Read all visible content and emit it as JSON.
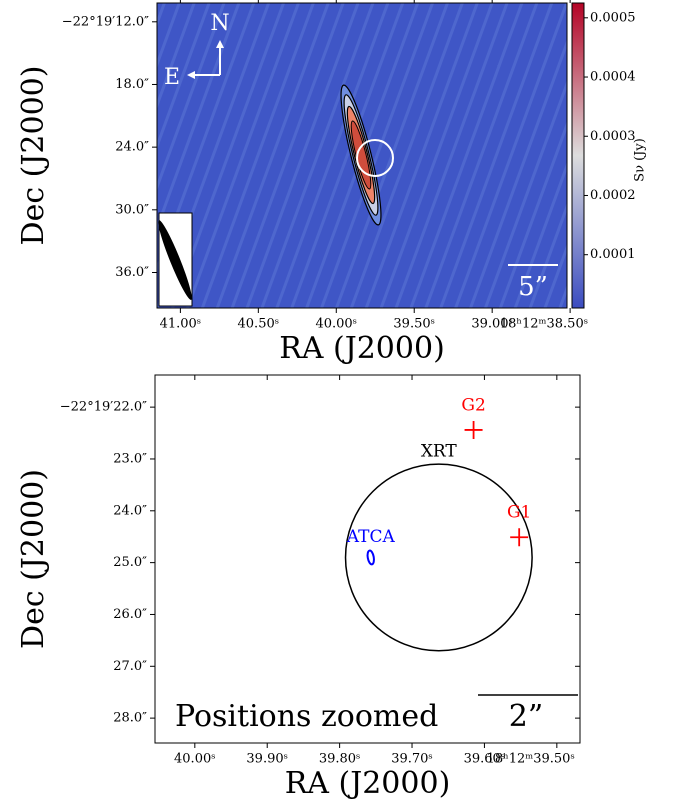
{
  "chart_data": [
    {
      "type": "image",
      "xlabel": "RA (J2000)",
      "ylabel": "Dec (J2000)",
      "xlim": [
        41.15,
        38.52
      ],
      "xticks": [
        {
          "value": 41.0,
          "label": "41.00ˢ"
        },
        {
          "value": 40.5,
          "label": "40.50ˢ"
        },
        {
          "value": 40.0,
          "label": "40.00ˢ"
        },
        {
          "value": 39.5,
          "label": "39.50ˢ"
        },
        {
          "value": 39.0,
          "label": "39.00ˢ"
        },
        {
          "value": 38.5,
          "label": "18ʰ12ᵐ38.50ˢ"
        }
      ],
      "ylim": [
        10.2,
        39.4
      ],
      "yticks": [
        {
          "value": 12,
          "label": "−22°19′12.0″"
        },
        {
          "value": 18,
          "label": "18.0″"
        },
        {
          "value": 24,
          "label": "24.0″"
        },
        {
          "value": 30,
          "label": "30.0″"
        },
        {
          "value": 36,
          "label": "36.0″"
        }
      ],
      "colorbar": {
        "label": "Sν (Jy)",
        "lim": [
          1e-05,
          0.000525
        ],
        "ticks": [
          0.0001,
          0.0002,
          0.0003,
          0.0004,
          0.0005
        ],
        "colors": [
          "#3b4cc0",
          "#dddddd",
          "#b40426"
        ]
      },
      "north": "N",
      "east": "E",
      "scalebar": "5”"
    },
    {
      "type": "scatter",
      "xlabel": "RA (J2000)",
      "ylabel": "Dec (J2000)",
      "title": "Positions zoomed",
      "scalebar": "2”",
      "xlim": [
        40.055,
        39.468
      ],
      "xticks": [
        {
          "value": 40.0,
          "label": "40.00ˢ"
        },
        {
          "value": 39.9,
          "label": "39.90ˢ"
        },
        {
          "value": 39.8,
          "label": "39.80ˢ"
        },
        {
          "value": 39.7,
          "label": "39.70ˢ"
        },
        {
          "value": 39.6,
          "label": "39.60ˢ"
        },
        {
          "value": 39.5,
          "label": "18ʰ12ᵐ39.50ˢ"
        }
      ],
      "ylim": [
        21.38,
        28.48
      ],
      "yticks": [
        {
          "value": 22,
          "label": "−22°19′22.0″"
        },
        {
          "value": 23,
          "label": "23.0″"
        },
        {
          "value": 24,
          "label": "24.0″"
        },
        {
          "value": 25,
          "label": "25.0″"
        },
        {
          "value": 26,
          "label": "26.0″"
        },
        {
          "value": 27,
          "label": "27.0″"
        },
        {
          "value": 28,
          "label": "28.0″"
        }
      ],
      "points": [
        {
          "name": "G2",
          "x": 39.615,
          "y": 22.44,
          "color": "red"
        },
        {
          "name": "G1",
          "x": 39.552,
          "y": 24.51,
          "color": "red"
        }
      ],
      "ellipse": {
        "name": "ATCA",
        "x": 39.757,
        "y": 24.9,
        "color": "blue"
      },
      "circle": {
        "name": "XRT",
        "x": 39.663,
        "y": 24.9,
        "radius": 1.8,
        "color": "black"
      }
    }
  ]
}
